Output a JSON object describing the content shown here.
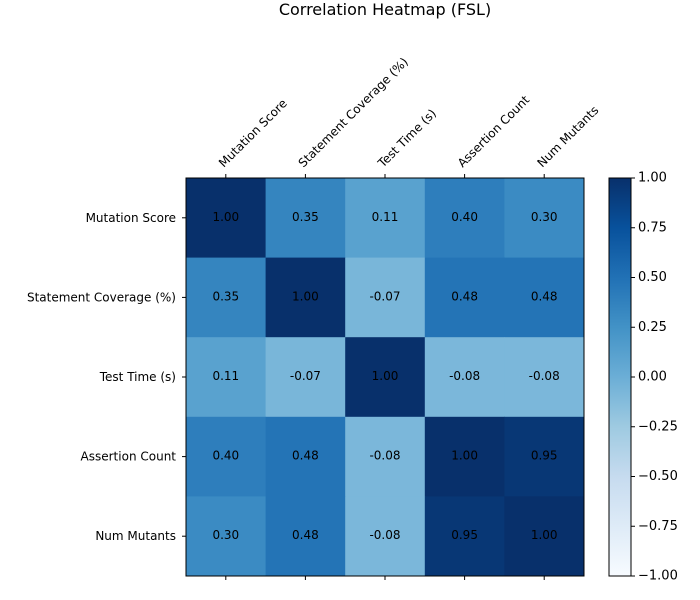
{
  "chart_data": {
    "type": "heatmap",
    "title": "Correlation Heatmap (FSL)",
    "x_categories": [
      "Mutation Score",
      "Statement Coverage (%)",
      "Test Time (s)",
      "Assertion Count",
      "Num Mutants"
    ],
    "y_categories": [
      "Mutation Score",
      "Statement Coverage (%)",
      "Test Time (s)",
      "Assertion Count",
      "Num Mutants"
    ],
    "values": [
      [
        1.0,
        0.35,
        0.11,
        0.4,
        0.3
      ],
      [
        0.35,
        1.0,
        -0.07,
        0.48,
        0.48
      ],
      [
        0.11,
        -0.07,
        1.0,
        -0.08,
        -0.08
      ],
      [
        0.4,
        0.48,
        -0.08,
        1.0,
        0.95
      ],
      [
        0.3,
        0.48,
        -0.08,
        0.95,
        1.0
      ]
    ],
    "value_labels": [
      [
        "1.00",
        "0.35",
        "0.11",
        "0.40",
        "0.30"
      ],
      [
        "0.35",
        "1.00",
        "-0.07",
        "0.48",
        "0.48"
      ],
      [
        "0.11",
        "-0.07",
        "1.00",
        "-0.08",
        "-0.08"
      ],
      [
        "0.40",
        "0.48",
        "-0.08",
        "1.00",
        "0.95"
      ],
      [
        "0.30",
        "0.48",
        "-0.08",
        "0.95",
        "1.00"
      ]
    ],
    "colormap": "Blues",
    "vmin": -1.0,
    "vmax": 1.0,
    "colorbar_ticks": [
      1.0,
      0.75,
      0.5,
      0.25,
      0.0,
      -0.25,
      -0.5,
      -0.75,
      -1.0
    ],
    "colorbar_tick_labels": [
      "1.00",
      "0.75",
      "0.50",
      "0.25",
      "0.00",
      "−0.25",
      "−0.50",
      "−0.75",
      "−1.00"
    ],
    "x_tick_rotation": "45-degree",
    "colorbar_position": "right"
  }
}
